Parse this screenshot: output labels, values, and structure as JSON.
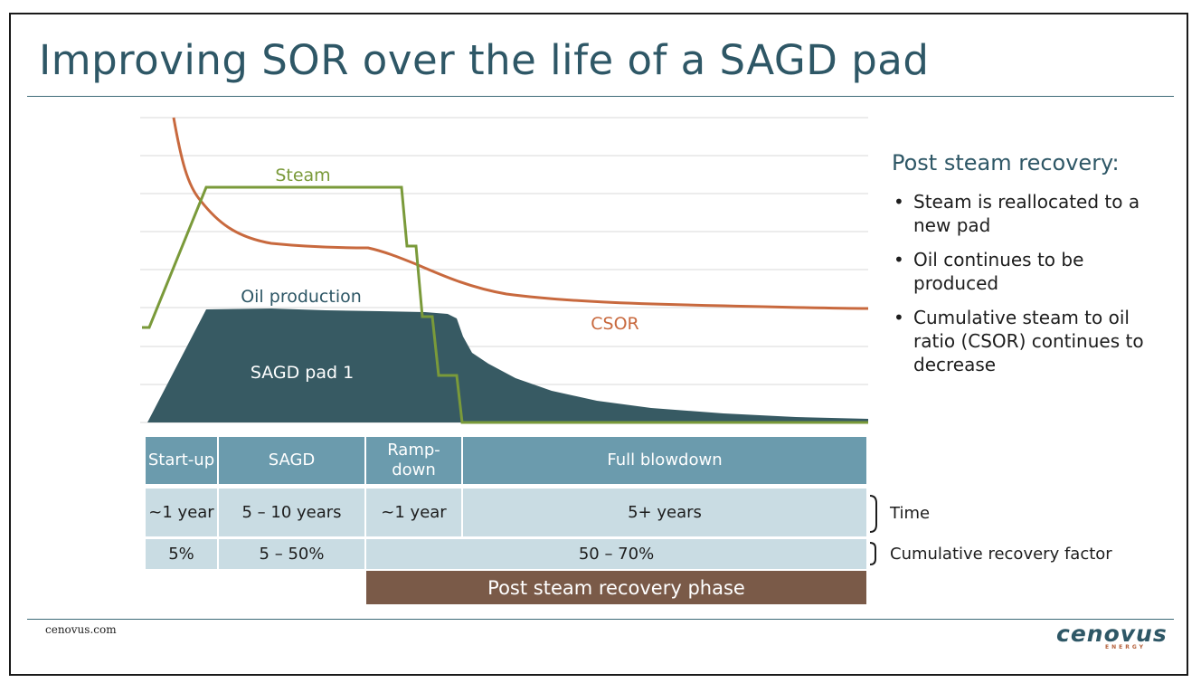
{
  "title": "Improving SOR over the life of a SAGD pad",
  "chart_data": {
    "type": "area",
    "title": "",
    "series": [
      {
        "name": "Oil production",
        "kind": "area",
        "color": "#375a63"
      },
      {
        "name": "Steam",
        "kind": "line",
        "color": "#7a9a3a"
      },
      {
        "name": "CSOR",
        "kind": "line",
        "color": "#c8693e"
      }
    ],
    "inner_label": "SAGD pad 1",
    "grid": true
  },
  "sidebar": {
    "heading": "Post steam recovery:",
    "bullets": [
      "Steam is reallocated to a new pad",
      "Oil continues to be produced",
      "Cumulative steam to oil ratio (CSOR) continues to decrease"
    ]
  },
  "table": {
    "phases": [
      "Start-up",
      "SAGD",
      "Ramp-down",
      "Full blowdown"
    ],
    "time": [
      "~1 year",
      "5 – 10 years",
      "~1 year",
      "5+ years"
    ],
    "recovery": [
      "5%",
      "5 – 50%",
      "50 – 70%"
    ],
    "time_label": "Time",
    "recovery_label": "Cumulative recovery factor",
    "post_phase": "Post steam recovery phase"
  },
  "footer": {
    "url": "cenovus.com",
    "logo": "cenovus",
    "logo_sub": "ENERGY"
  },
  "colors": {
    "title": "#2e5766",
    "header_cell": "#6b9bad",
    "body_cell": "#c9dce3",
    "post_phase": "#7a5a48"
  }
}
